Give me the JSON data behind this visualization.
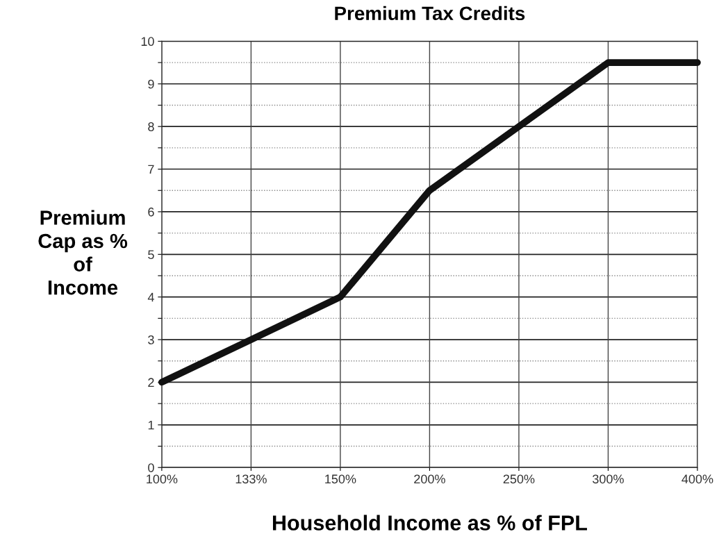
{
  "chart_data": {
    "type": "line",
    "title": "Premium Tax Credits",
    "xlabel": "Household Income as % of FPL",
    "ylabel": "Premium\nCap as %\nof\nIncome",
    "categories": [
      "100%",
      "133%",
      "150%",
      "200%",
      "250%",
      "300%",
      "400%"
    ],
    "series": [
      {
        "color": "#111111",
        "values": [
          2,
          3,
          4,
          6.5,
          8,
          9.5,
          9.5
        ]
      }
    ],
    "ylim": [
      0,
      10
    ],
    "yticks": [
      0,
      {
        "value": 0.5,
        "label": null
      },
      1,
      {
        "value": 1.5,
        "label": null
      },
      2,
      {
        "value": 2.5,
        "label": null
      },
      3,
      {
        "value": 3.5,
        "label": null
      },
      4,
      {
        "value": 4.5,
        "label": null
      },
      5,
      {
        "value": 5.5,
        "label": null
      },
      6,
      {
        "value": 6.5,
        "label": null
      },
      7,
      {
        "value": 7.5,
        "label": null
      },
      8,
      {
        "value": 8.5,
        "label": null
      },
      9,
      {
        "value": 9.5,
        "label": null
      },
      10
    ],
    "grid": true,
    "legend": false,
    "marker": "none",
    "line_style": "solid"
  }
}
